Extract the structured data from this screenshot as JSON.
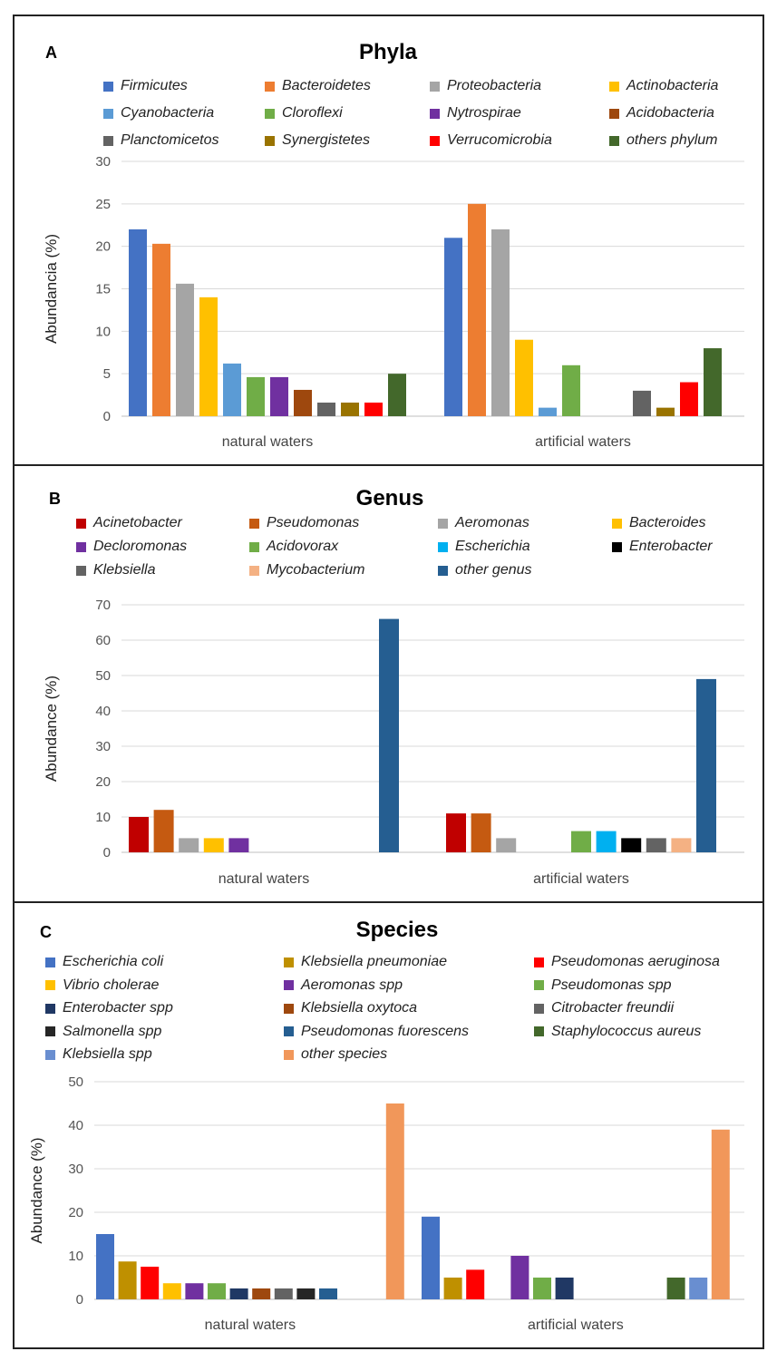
{
  "chart_data": [
    {
      "type": "bar",
      "panel_label": "A",
      "title": "Phyla",
      "ylabel": "Abundancia (%)",
      "xlabel": "",
      "ylim": [
        0,
        30
      ],
      "yticks": [
        "0",
        "5",
        "10",
        "15",
        "20",
        "25",
        "30"
      ],
      "categories": [
        "natural waters",
        "artificial waters"
      ],
      "series": [
        {
          "name": "Firmicutes",
          "color": "#4472C4",
          "values": [
            22,
            21
          ]
        },
        {
          "name": "Bacteroidetes",
          "color": "#ED7D31",
          "values": [
            20.3,
            25
          ]
        },
        {
          "name": "Proteobacteria",
          "color": "#A5A5A5",
          "values": [
            15.6,
            22
          ]
        },
        {
          "name": "Actinobacteria",
          "color": "#FFC000",
          "values": [
            14,
            9
          ]
        },
        {
          "name": "Cyanobacteria",
          "color": "#5B9BD5",
          "values": [
            6.2,
            1
          ]
        },
        {
          "name": "Cloroflexi",
          "color": "#70AD47",
          "values": [
            4.6,
            6
          ]
        },
        {
          "name": "Nytrospirae",
          "color": "#7030A0",
          "values": [
            4.6,
            0
          ]
        },
        {
          "name": "Acidobacteria",
          "color": "#9E480E",
          "values": [
            3.1,
            0
          ]
        },
        {
          "name": "Planctomicetos",
          "color": "#636363",
          "values": [
            1.6,
            3
          ]
        },
        {
          "name": "Synergistetes",
          "color": "#997300",
          "values": [
            1.6,
            1
          ]
        },
        {
          "name": "Verrucomicrobia",
          "color": "#FF0000",
          "values": [
            1.6,
            4
          ]
        },
        {
          "name": "others phylum",
          "color": "#43682B",
          "values": [
            5,
            8
          ]
        }
      ]
    },
    {
      "type": "bar",
      "panel_label": "B",
      "title": "Genus",
      "ylabel": "Abundance (%)",
      "xlabel": "",
      "ylim": [
        0,
        70
      ],
      "yticks": [
        "0",
        "10",
        "20",
        "30",
        "40",
        "50",
        "60",
        "70"
      ],
      "categories": [
        "natural waters",
        "artificial waters"
      ],
      "series": [
        {
          "name": "Acinetobacter",
          "color": "#C00000",
          "values": [
            10,
            11
          ]
        },
        {
          "name": "Pseudomonas",
          "color": "#C55A11",
          "values": [
            12,
            11
          ]
        },
        {
          "name": "Aeromonas",
          "color": "#A5A5A5",
          "values": [
            4,
            4
          ]
        },
        {
          "name": "Bacteroides",
          "color": "#FFC000",
          "values": [
            4,
            0
          ]
        },
        {
          "name": "Decloromonas",
          "color": "#7030A0",
          "values": [
            4,
            0
          ]
        },
        {
          "name": "Acidovorax",
          "color": "#70AD47",
          "values": [
            0,
            6
          ]
        },
        {
          "name": "Escherichia",
          "color": "#00B0F0",
          "values": [
            0,
            6
          ]
        },
        {
          "name": "Enterobacter",
          "color": "#000000",
          "values": [
            0,
            4
          ]
        },
        {
          "name": "Klebsiella",
          "color": "#636363",
          "values": [
            0,
            4
          ]
        },
        {
          "name": "Mycobacterium",
          "color": "#F4B183",
          "values": [
            0,
            4
          ]
        },
        {
          "name": "other genus",
          "color": "#255E91",
          "values": [
            66,
            49
          ]
        }
      ]
    },
    {
      "type": "bar",
      "panel_label": "C",
      "title": "Species",
      "ylabel": "Abundance (%)",
      "xlabel": "",
      "ylim": [
        0,
        50
      ],
      "yticks": [
        "0",
        "10",
        "20",
        "30",
        "40",
        "50"
      ],
      "categories": [
        "natural waters",
        "artificial waters"
      ],
      "series": [
        {
          "name": "Escherichia coli",
          "color": "#4472C4",
          "values": [
            15,
            19
          ]
        },
        {
          "name": "Klebsiella pneumoniae",
          "color": "#BF9000",
          "values": [
            8.7,
            5
          ]
        },
        {
          "name": "Pseudomonas aeruginosa",
          "color": "#FF0000",
          "values": [
            7.5,
            6.8
          ]
        },
        {
          "name": "Vibrio cholerae",
          "color": "#FFC000",
          "values": [
            3.7,
            0
          ]
        },
        {
          "name": "Aeromonas spp",
          "color": "#7030A0",
          "values": [
            3.7,
            10
          ]
        },
        {
          "name": "Pseudomonas spp",
          "color": "#70AD47",
          "values": [
            3.7,
            5
          ]
        },
        {
          "name": "Enterobacter spp",
          "color": "#203864",
          "values": [
            2.5,
            5
          ]
        },
        {
          "name": "Klebsiella oxytoca",
          "color": "#9E480E",
          "values": [
            2.5,
            0
          ]
        },
        {
          "name": "Citrobacter freundii",
          "color": "#636363",
          "values": [
            2.5,
            0
          ]
        },
        {
          "name": "Salmonella spp",
          "color": "#262626",
          "values": [
            2.5,
            0
          ]
        },
        {
          "name": "Pseudomonas fuorescens",
          "color": "#255E91",
          "values": [
            2.5,
            0
          ]
        },
        {
          "name": "Staphylococcus aureus",
          "color": "#43682B",
          "values": [
            0,
            5
          ]
        },
        {
          "name": "Klebsiella spp",
          "color": "#698ED0",
          "values": [
            0,
            5
          ]
        },
        {
          "name": "other species",
          "color": "#F1975A",
          "values": [
            45,
            39
          ]
        }
      ]
    }
  ]
}
